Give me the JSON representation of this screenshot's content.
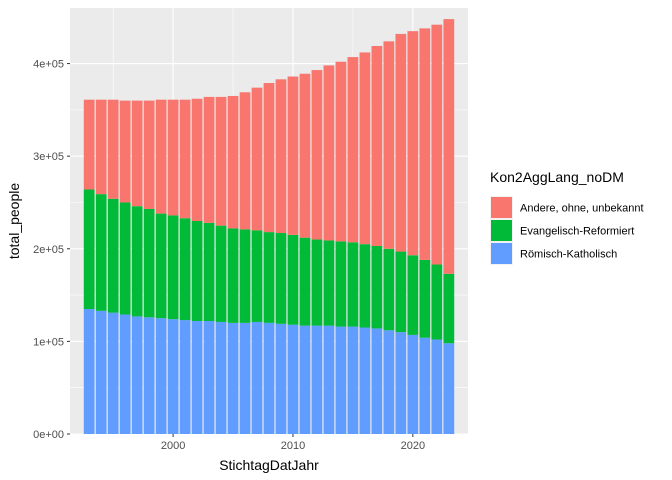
{
  "chart_data": {
    "type": "bar",
    "stacked": true,
    "xlabel": "StichtagDatJahr",
    "ylabel": "total_people",
    "x": [
      1993,
      1994,
      1995,
      1996,
      1997,
      1998,
      1999,
      2000,
      2001,
      2002,
      2003,
      2004,
      2005,
      2006,
      2007,
      2008,
      2009,
      2010,
      2011,
      2012,
      2013,
      2014,
      2015,
      2016,
      2017,
      2018,
      2019,
      2020,
      2021,
      2022,
      2023
    ],
    "ylim": [
      0,
      460000
    ],
    "xlim": [
      1991.4,
      2024.6
    ],
    "xticks": [
      2000,
      2010,
      2020
    ],
    "xtick_labels": [
      "2000",
      "2010",
      "2020"
    ],
    "yticks": [
      0,
      100000,
      200000,
      300000,
      400000
    ],
    "ytick_labels": [
      "0e+00",
      "1e+05",
      "2e+05",
      "3e+05",
      "4e+05"
    ],
    "grid": true,
    "legend": {
      "title": "Kon2AggLang_noDM",
      "position": "right",
      "entries": [
        "Andere, ohne, unbekannt",
        "Evangelisch-Reformiert",
        "Römisch-Katholisch"
      ]
    },
    "series": [
      {
        "name": "Römisch-Katholisch",
        "color": "#619CFF",
        "values": [
          135000,
          133000,
          131000,
          129000,
          127000,
          126000,
          125000,
          124000,
          123000,
          122000,
          122000,
          121000,
          120000,
          120000,
          121000,
          120000,
          119000,
          118000,
          117000,
          117000,
          117000,
          116000,
          116000,
          115000,
          114000,
          112000,
          110000,
          107000,
          104000,
          102000,
          98000
        ]
      },
      {
        "name": "Evangelisch-Reformiert",
        "color": "#00BA38",
        "values": [
          129000,
          126000,
          123000,
          121000,
          119000,
          117000,
          113000,
          112000,
          110000,
          108000,
          106000,
          104000,
          102000,
          101000,
          99000,
          98000,
          98000,
          97000,
          95000,
          93000,
          92000,
          92000,
          91000,
          90000,
          89000,
          88000,
          87000,
          86000,
          84000,
          81000,
          75000
        ]
      },
      {
        "name": "Andere, ohne, unbekannt",
        "color": "#F8766D",
        "values": [
          97000,
          102000,
          107000,
          110000,
          114000,
          117000,
          123000,
          125000,
          128000,
          132000,
          136000,
          139000,
          143000,
          148000,
          154000,
          161000,
          166000,
          171000,
          177000,
          183000,
          189000,
          194000,
          200000,
          207000,
          216000,
          224000,
          235000,
          242000,
          250000,
          259000,
          275000
        ]
      }
    ]
  }
}
